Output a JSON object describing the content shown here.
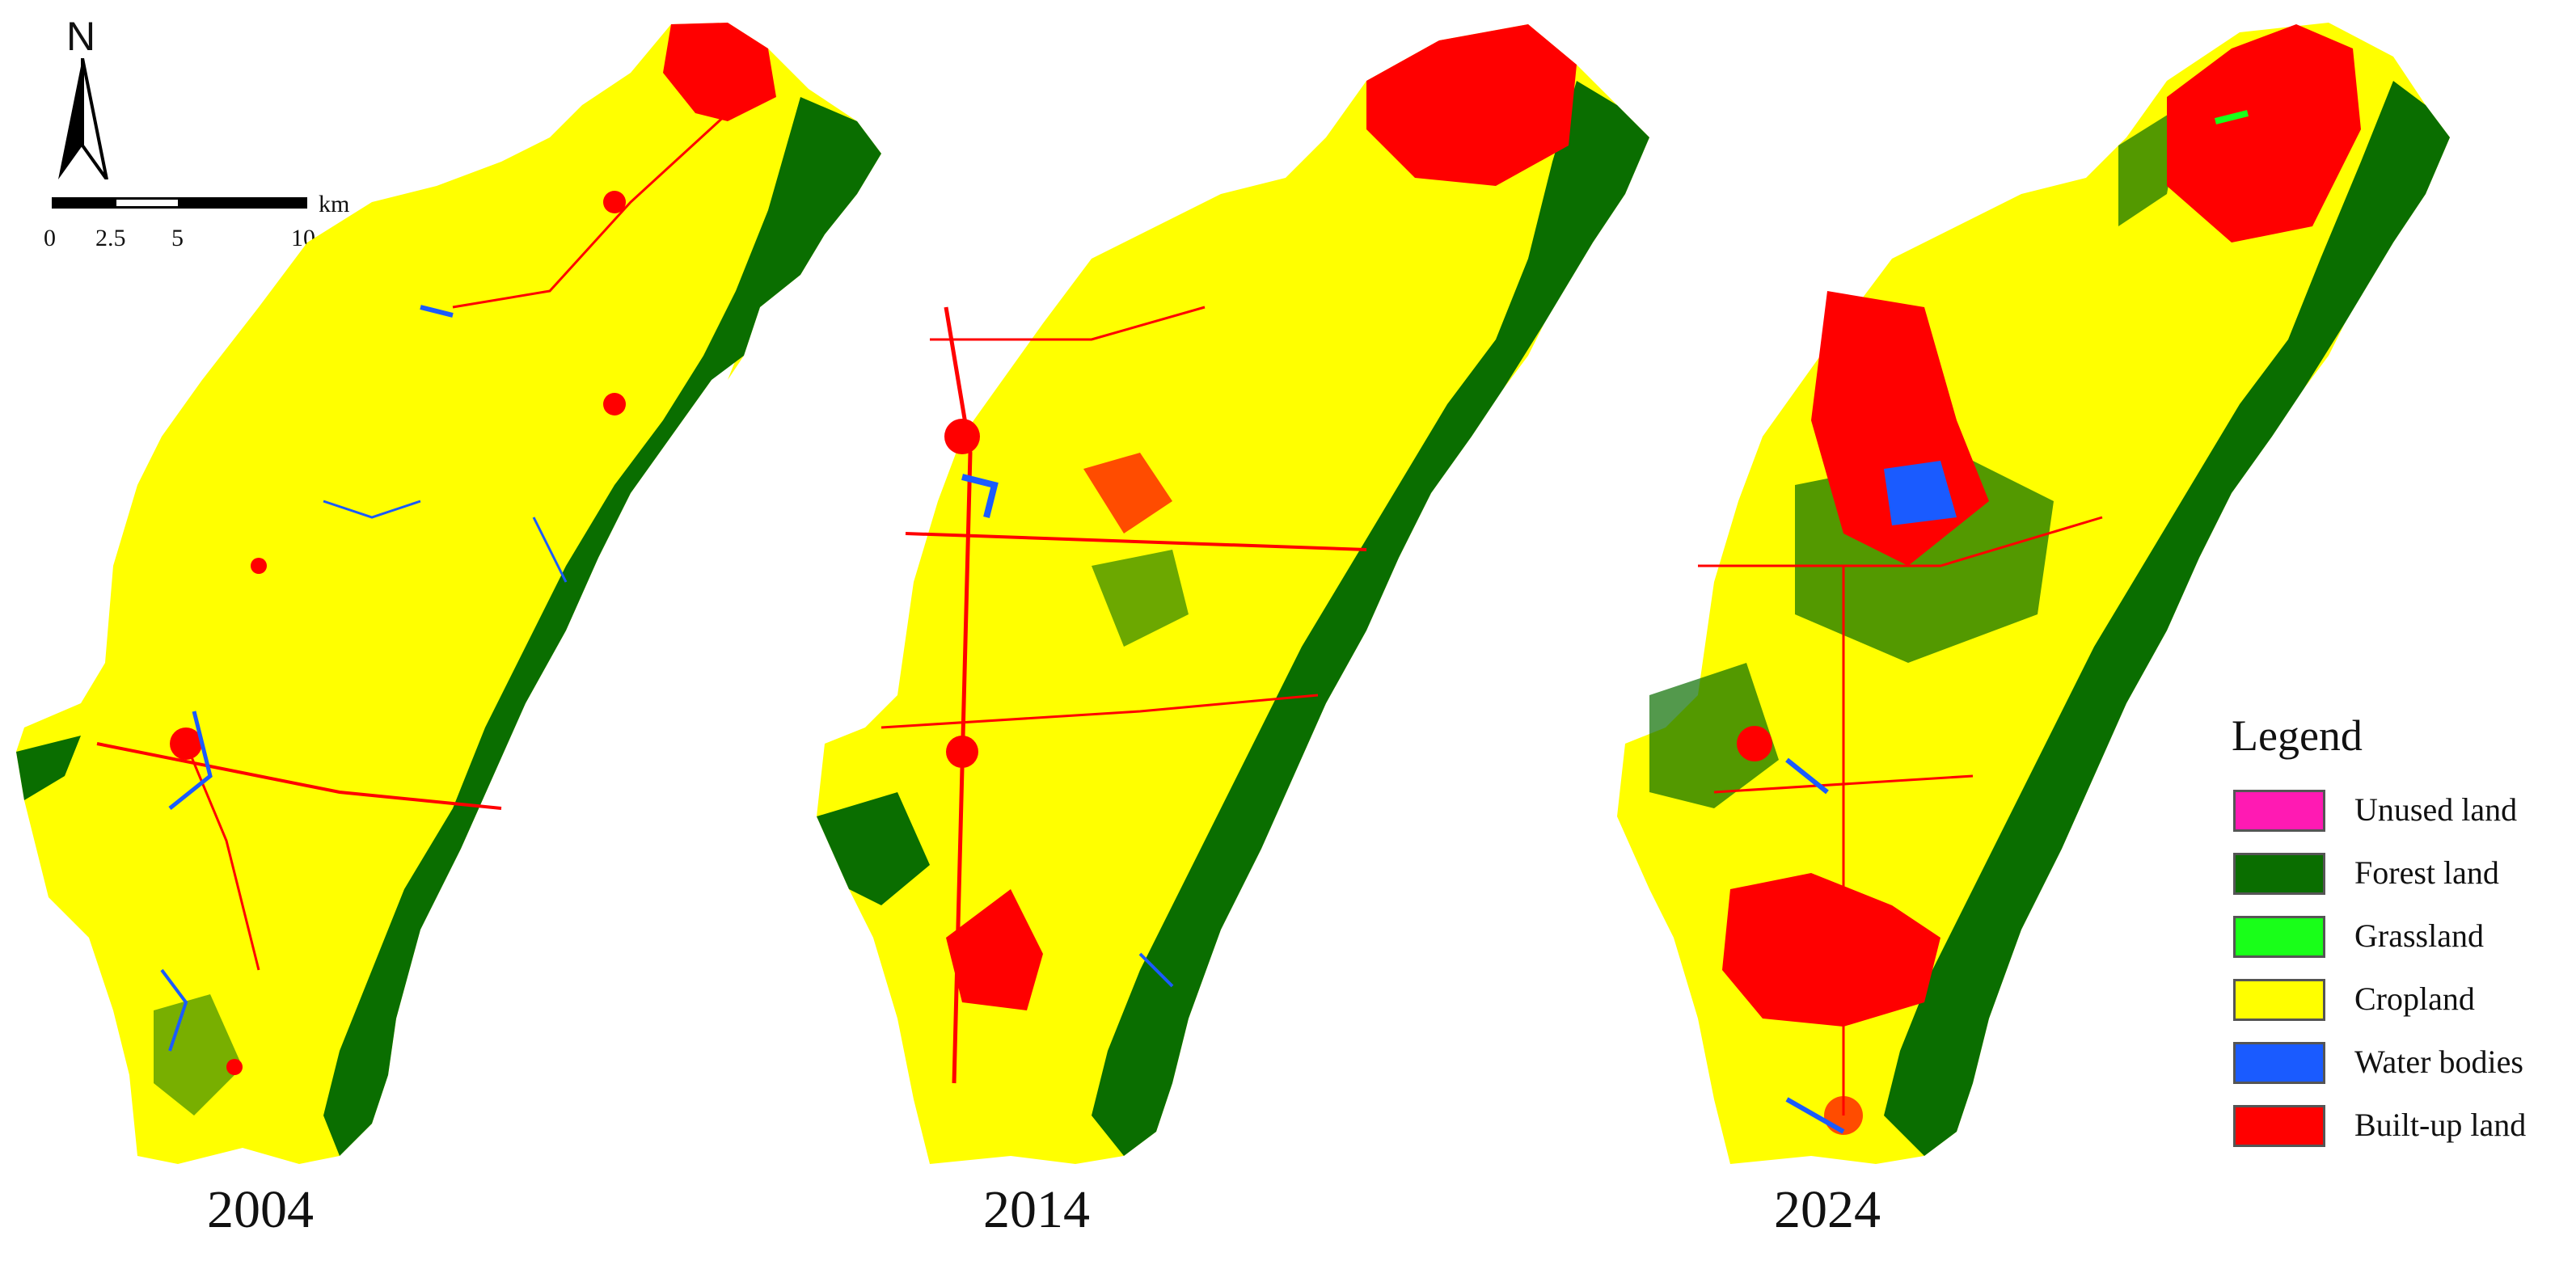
{
  "north_arrow": {
    "label": "N",
    "icon": "north-arrow-icon"
  },
  "scale_bar": {
    "ticks": [
      "0",
      "2.5",
      "5",
      "10"
    ],
    "unit": "km"
  },
  "maps": [
    {
      "year": "2004"
    },
    {
      "year": "2014"
    },
    {
      "year": "2024"
    }
  ],
  "legend": {
    "title": "Legend",
    "items": [
      {
        "label": "Unused land",
        "color": "#ff1ab3"
      },
      {
        "label": "Forest land",
        "color": "#0a6e00"
      },
      {
        "label": "Grassland",
        "color": "#19ff19"
      },
      {
        "label": "Cropland",
        "color": "#ffff00"
      },
      {
        "label": "Water bodies",
        "color": "#1a5bff"
      },
      {
        "label": "Built-up land",
        "color": "#ff0000"
      }
    ]
  }
}
